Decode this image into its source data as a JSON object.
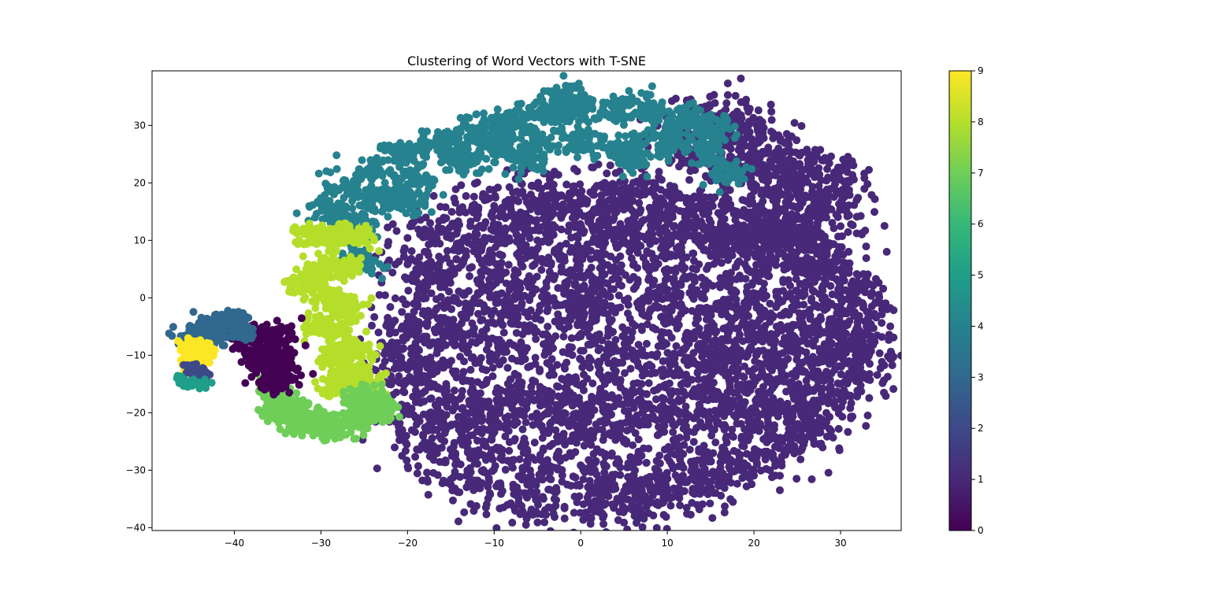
{
  "chart_data": {
    "type": "scatter",
    "title": "Clustering of Word Vectors with T-SNE",
    "xlabel": "",
    "ylabel": "",
    "xlim": [
      -49.5,
      37
    ],
    "ylim": [
      -40.5,
      39.5
    ],
    "xticks": [
      -40,
      -30,
      -20,
      -10,
      0,
      10,
      20,
      30
    ],
    "xtick_labels": [
      "−40",
      "−30",
      "−20",
      "−10",
      "0",
      "10",
      "20",
      "30"
    ],
    "yticks": [
      -40,
      -30,
      -20,
      -10,
      0,
      10,
      20,
      30
    ],
    "ytick_labels": [
      "−40",
      "−30",
      "−20",
      "−10",
      "0",
      "10",
      "20",
      "30"
    ],
    "grid": false,
    "colormap": "viridis",
    "colorbar": {
      "range": [
        0,
        9
      ],
      "ticks": [
        0,
        1,
        2,
        3,
        4,
        5,
        6,
        7,
        8,
        9
      ],
      "tick_labels": [
        "0",
        "1",
        "2",
        "3",
        "4",
        "5",
        "6",
        "7",
        "8",
        "9"
      ]
    },
    "cluster_colors": {
      "0": "#440154",
      "1": "#482878",
      "2": "#3e4989",
      "3": "#31688e",
      "4": "#26828e",
      "5": "#1f9e89",
      "6": "#35b779",
      "7": "#6ece58",
      "8": "#b5de2b",
      "9": "#fde725"
    },
    "series": [
      {
        "cluster": 1,
        "description_points": [
          [
            -20.5,
            -5
          ],
          [
            -19,
            5
          ],
          [
            -16,
            12
          ],
          [
            -10,
            16
          ],
          [
            -3,
            18
          ],
          [
            4,
            18.5
          ],
          [
            10,
            16
          ],
          [
            15,
            12
          ],
          [
            20,
            10
          ],
          [
            25,
            8
          ],
          [
            29,
            5
          ],
          [
            31.5,
            0
          ],
          [
            33,
            -5
          ],
          [
            32,
            -10
          ],
          [
            30,
            -15
          ],
          [
            27,
            -22
          ],
          [
            22,
            -27
          ],
          [
            15,
            -32
          ],
          [
            8,
            -35
          ],
          [
            2,
            -36
          ],
          [
            -5,
            -35
          ],
          [
            -12,
            -32
          ],
          [
            -17,
            -27
          ],
          [
            -20,
            -20
          ],
          [
            -21,
            -12
          ],
          [
            -10,
            0
          ],
          [
            0,
            0
          ],
          [
            10,
            0
          ],
          [
            20,
            -5
          ],
          [
            -10,
            -20
          ],
          [
            0,
            -20
          ],
          [
            10,
            -20
          ],
          [
            20,
            -20
          ],
          [
            5,
            10
          ],
          [
            -5,
            10
          ],
          [
            15,
            -10
          ],
          [
            25,
            -10
          ],
          [
            17,
            29
          ],
          [
            20,
            27
          ],
          [
            23,
            24
          ],
          [
            27,
            21
          ],
          [
            29,
            19
          ],
          [
            19,
            22
          ],
          [
            24,
            18
          ],
          [
            28,
            14
          ],
          [
            25,
            12
          ],
          [
            22,
            13
          ],
          [
            13,
            25
          ],
          [
            15,
            31
          ]
        ]
      },
      {
        "cluster": 4,
        "description_points": [
          [
            -29,
            15
          ],
          [
            -27,
            19
          ],
          [
            -24,
            22
          ],
          [
            -20,
            25
          ],
          [
            -16,
            27
          ],
          [
            -12,
            29
          ],
          [
            -8,
            31
          ],
          [
            -4,
            32
          ],
          [
            0,
            33
          ],
          [
            4,
            33
          ],
          [
            8,
            33
          ],
          [
            12,
            31
          ],
          [
            15,
            30
          ],
          [
            -14,
            24
          ],
          [
            -10,
            26
          ],
          [
            -5,
            27
          ],
          [
            0,
            27
          ],
          [
            5,
            26
          ],
          [
            10,
            27
          ],
          [
            14,
            26
          ],
          [
            -26,
            13
          ],
          [
            -23,
            17
          ],
          [
            -19,
            21
          ],
          [
            17,
            22
          ],
          [
            -2,
            35
          ],
          [
            -6,
            24
          ],
          [
            6,
            24
          ],
          [
            -25.5,
            6.5
          ],
          [
            -20,
            17
          ]
        ]
      },
      {
        "cluster": 8,
        "description_points": [
          [
            -31,
            11
          ],
          [
            -29,
            11
          ],
          [
            -26,
            11
          ],
          [
            -30,
            5
          ],
          [
            -27,
            5
          ],
          [
            -32,
            2
          ],
          [
            -29,
            0
          ],
          [
            -27,
            -2
          ],
          [
            -30,
            -5
          ],
          [
            -28,
            -6
          ],
          [
            -28,
            -10
          ],
          [
            -26,
            -9
          ],
          [
            -27,
            -13
          ],
          [
            -25,
            -14
          ],
          [
            -26,
            -16
          ],
          [
            -24,
            -17
          ],
          [
            -24,
            -19
          ],
          [
            -28,
            -15
          ]
        ]
      },
      {
        "cluster": 7,
        "description_points": [
          [
            -36,
            -15
          ],
          [
            -35,
            -17
          ],
          [
            -35,
            -20
          ],
          [
            -33,
            -22
          ],
          [
            -31,
            -22
          ],
          [
            -29,
            -23
          ],
          [
            -27,
            -22
          ],
          [
            -25,
            -21
          ],
          [
            -24,
            -20
          ],
          [
            -24,
            -17
          ],
          [
            -26,
            -18
          ],
          [
            -30,
            -21
          ],
          [
            -33,
            -19
          ],
          [
            -23.5,
            -19
          ]
        ]
      },
      {
        "cluster": 0,
        "description_points": [
          [
            -39,
            -7
          ],
          [
            -37,
            -7
          ],
          [
            -35,
            -6
          ],
          [
            -37,
            -9
          ],
          [
            -35,
            -10
          ],
          [
            -37,
            -11
          ],
          [
            -35,
            -12
          ],
          [
            -34,
            -14
          ],
          [
            -36,
            -15
          ]
        ]
      },
      {
        "cluster": 3,
        "description_points": [
          [
            -45,
            -7
          ],
          [
            -44,
            -6
          ],
          [
            -43,
            -5
          ],
          [
            -41,
            -4
          ],
          [
            -40,
            -5
          ],
          [
            -39,
            -6
          ],
          [
            -42,
            -7
          ],
          [
            -40,
            -4
          ]
        ]
      },
      {
        "cluster": 9,
        "description_points": [
          [
            -45,
            -8
          ],
          [
            -44,
            -9
          ],
          [
            -45,
            -10
          ],
          [
            -44,
            -11
          ],
          [
            -45,
            -12
          ],
          [
            -43,
            -9
          ]
        ]
      },
      {
        "cluster": 2,
        "description_points": [
          [
            -45,
            -12
          ],
          [
            -44,
            -13
          ],
          [
            -43.5,
            -14
          ]
        ]
      },
      {
        "cluster": 5,
        "description_points": [
          [
            -46,
            -14
          ],
          [
            -45,
            -15
          ],
          [
            -44,
            -15
          ]
        ]
      }
    ]
  }
}
